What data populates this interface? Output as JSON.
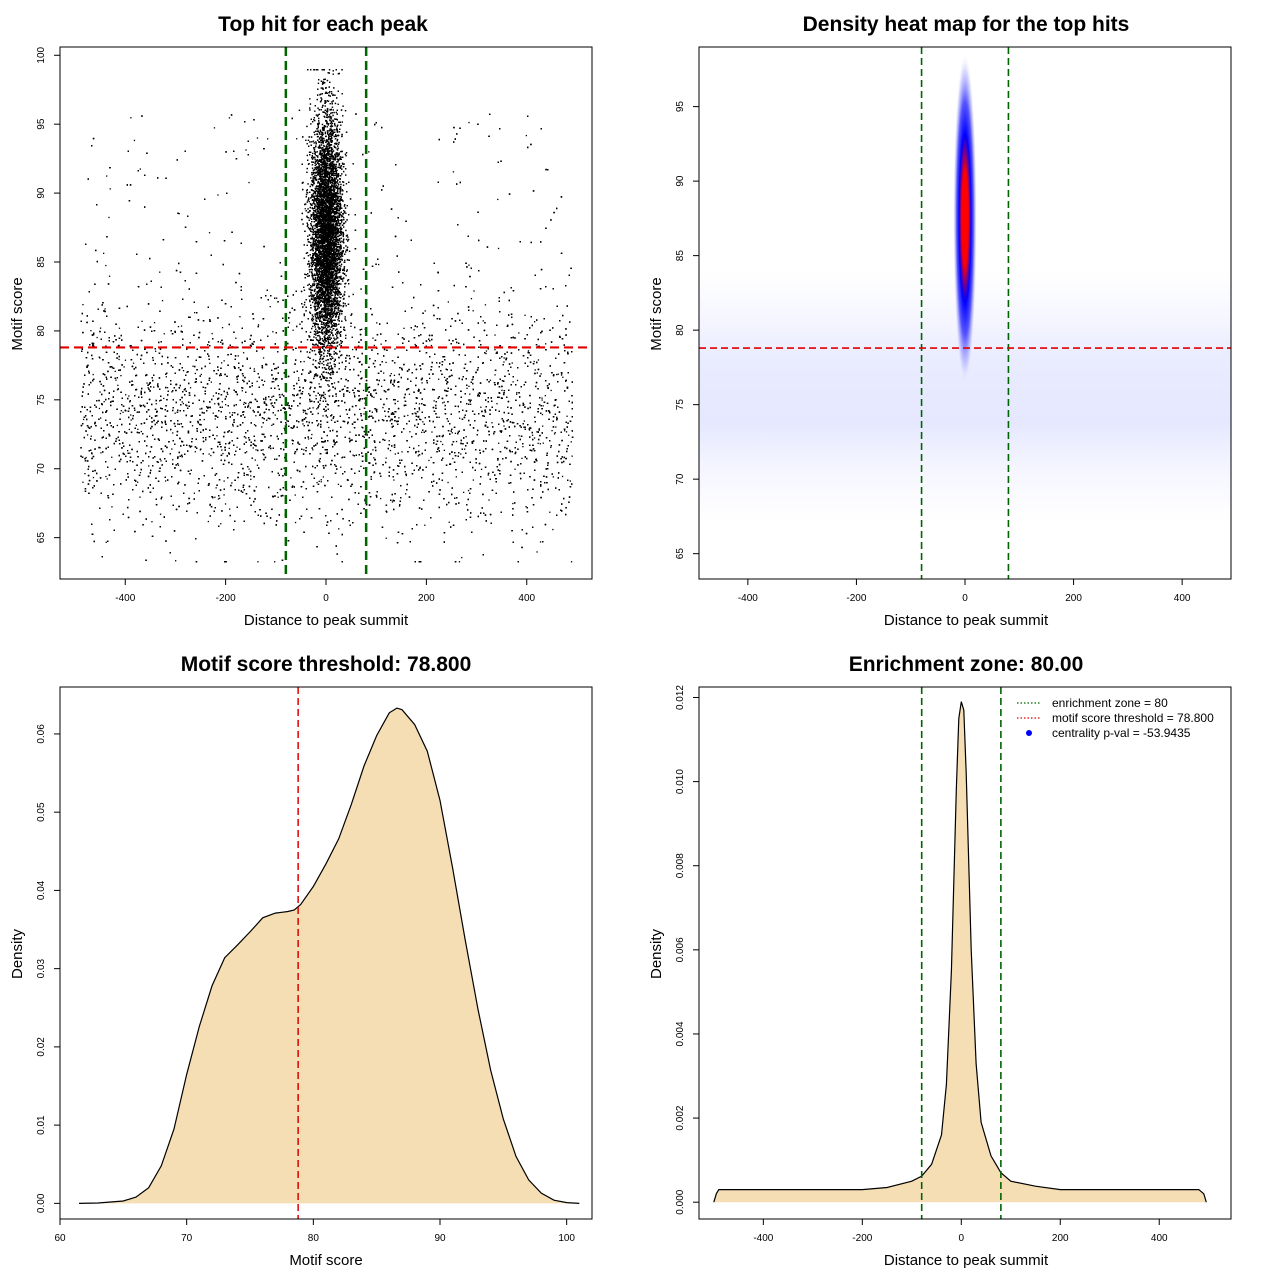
{
  "chart_data": [
    {
      "id": "scatter",
      "type": "scatter",
      "title": "Top hit for each peak",
      "xlabel": "Distance to peak summit",
      "ylabel": "Motif score",
      "xlim": [
        -530,
        530
      ],
      "ylim": [
        62,
        100.6
      ],
      "xticks": [
        -400,
        -200,
        0,
        200,
        400
      ],
      "yticks": [
        65,
        70,
        75,
        80,
        85,
        90,
        95,
        100
      ],
      "point_color": "#000000",
      "enrichment_zone": [
        -80,
        80
      ],
      "score_threshold": 78.8,
      "zone_color": "#006400",
      "threshold_color": "#e00000",
      "background_x_range": [
        -490,
        490
      ],
      "background_score_peak": 74,
      "central_score_peak": 87,
      "max_score": 99,
      "min_score": 63.3
    },
    {
      "id": "heatmap",
      "type": "heatmap",
      "title": "Density heat map for the top hits",
      "xlabel": "Distance to peak summit",
      "ylabel": "Motif score",
      "xlim": [
        -490,
        490
      ],
      "ylim": [
        63.3,
        99
      ],
      "xticks": [
        -400,
        -200,
        0,
        200,
        400
      ],
      "yticks": [
        65,
        70,
        75,
        80,
        85,
        90,
        95
      ],
      "color_low": "#ffffff",
      "color_mid": "#0000ff",
      "color_high": "#ff0000",
      "hotspot_center": [
        0,
        87.5
      ],
      "enrichment_zone": [
        -80,
        80
      ],
      "score_threshold": 78.8,
      "zone_color": "#006400",
      "threshold_color": "#e00000"
    },
    {
      "id": "score_density",
      "type": "area",
      "title": "Motif score threshold: 78.800",
      "xlabel": "Motif score",
      "ylabel": "Density",
      "xlim": [
        60,
        102
      ],
      "ylim": [
        -0.002,
        0.066
      ],
      "xticks": [
        60,
        70,
        80,
        90,
        100
      ],
      "yticks": [
        0.0,
        0.01,
        0.02,
        0.03,
        0.04,
        0.05,
        0.06
      ],
      "ytick_labels": [
        "0.00",
        "0.01",
        "0.02",
        "0.03",
        "0.04",
        "0.05",
        "0.06"
      ],
      "fill_color": "#f5deb3",
      "line_color": "#000000",
      "threshold": 78.8,
      "threshold_color": "#e00000",
      "x": [
        61.5,
        63,
        65,
        66,
        67,
        68,
        69,
        70,
        71,
        72,
        73,
        74,
        75,
        76,
        77,
        77.5,
        78,
        78.5,
        79,
        80,
        81,
        82,
        83,
        84,
        85,
        86,
        86.6,
        87,
        88,
        89,
        90,
        91,
        92,
        93,
        94,
        95,
        96,
        97,
        98,
        99,
        100,
        101
      ],
      "values": [
        0.0,
        5e-05,
        0.0003,
        0.0008,
        0.002,
        0.0048,
        0.0095,
        0.0165,
        0.0226,
        0.0278,
        0.0314,
        0.033,
        0.0347,
        0.0365,
        0.0371,
        0.0372,
        0.0373,
        0.0375,
        0.0382,
        0.0405,
        0.0434,
        0.0466,
        0.051,
        0.0559,
        0.0598,
        0.0627,
        0.0633,
        0.0631,
        0.0612,
        0.0578,
        0.0515,
        0.0428,
        0.0336,
        0.0248,
        0.017,
        0.0108,
        0.006,
        0.003,
        0.0013,
        0.0004,
        0.0001,
        0.0
      ]
    },
    {
      "id": "centrality",
      "type": "area",
      "title": "Enrichment zone: 80.00",
      "xlabel": "Distance to peak summit",
      "ylabel": "Density",
      "xlim": [
        -530,
        545
      ],
      "ylim": [
        -0.0004,
        0.01225
      ],
      "xticks": [
        -400,
        -200,
        0,
        200,
        400
      ],
      "yticks": [
        0.0,
        0.002,
        0.004,
        0.006,
        0.008,
        0.01,
        0.012
      ],
      "ytick_labels": [
        "0.000",
        "0.002",
        "0.004",
        "0.006",
        "0.008",
        "0.010",
        "0.012"
      ],
      "fill_color": "#f5deb3",
      "line_color": "#000000",
      "enrichment_zone": [
        -80,
        80
      ],
      "zone_color": "#006400",
      "x": [
        -500,
        -495,
        -490,
        -450,
        -400,
        -300,
        -200,
        -150,
        -100,
        -80,
        -60,
        -40,
        -30,
        -20,
        -10,
        -5,
        0,
        5,
        10,
        20,
        30,
        40,
        60,
        80,
        100,
        150,
        200,
        300,
        400,
        480,
        490,
        495
      ],
      "values": [
        0.0,
        0.0002,
        0.0003,
        0.0003,
        0.0003,
        0.0003,
        0.0003,
        0.00035,
        0.0005,
        0.00062,
        0.0009,
        0.0016,
        0.0028,
        0.0055,
        0.0098,
        0.0115,
        0.0119,
        0.0117,
        0.0102,
        0.006,
        0.0033,
        0.0019,
        0.0011,
        0.0007,
        0.0005,
        0.00038,
        0.0003,
        0.0003,
        0.0003,
        0.0003,
        0.0002,
        0.0
      ],
      "legend": [
        {
          "label": "enrichment zone = 80",
          "symbol": "dotted-line",
          "color": "#006400"
        },
        {
          "label": "motif score threshold = 78.800",
          "symbol": "dotted-line",
          "color": "#e00000"
        },
        {
          "label": "centrality p-val = -53.9435",
          "symbol": "dot",
          "color": "#0000ff"
        }
      ],
      "legend_position": "top-right"
    }
  ]
}
